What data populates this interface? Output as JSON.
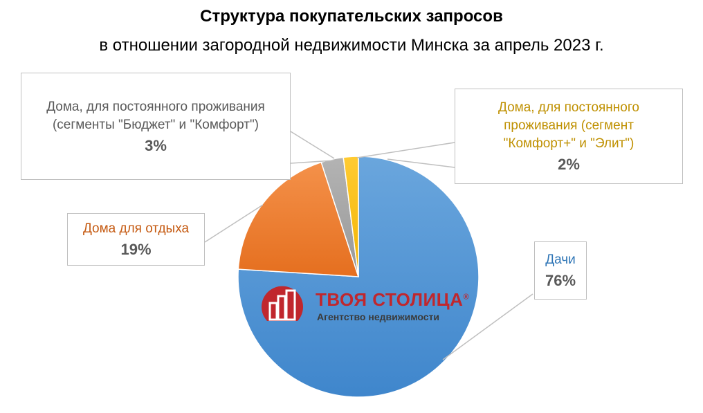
{
  "title": "Структура покупательских запросов",
  "subtitle": "в отношении загородной недвижимости Минска за апрель 2023 г.",
  "chart_data": {
    "type": "pie",
    "start_angle_deg": 0,
    "direction": "clockwise",
    "slices": [
      {
        "label": "Дачи",
        "value": 76,
        "display": "76%",
        "color": "#5b9bd5",
        "label_color": "#2e75b6"
      },
      {
        "label": "Дома для отдыха",
        "value": 19,
        "display": "19%",
        "color": "#ed7d31",
        "label_color": "#c55a11"
      },
      {
        "label": "Дома, для постоянного проживания (сегменты \"Бюджет\" и \"Комфорт\")",
        "value": 3,
        "display": "3%",
        "color": "#a5a5a5",
        "label_color": "#595959"
      },
      {
        "label": "Дома, для постоянного проживания (сегмент \"Комфорт+\" и \"Элит\")",
        "value": 2,
        "display": "2%",
        "color": "#ffc000",
        "label_color": "#bf9000"
      }
    ]
  },
  "logo": {
    "name": "ТВОЯ СТОЛИЦА",
    "tagline": "Агентство недвижимости",
    "registered": "®",
    "color": "#c0272d"
  }
}
